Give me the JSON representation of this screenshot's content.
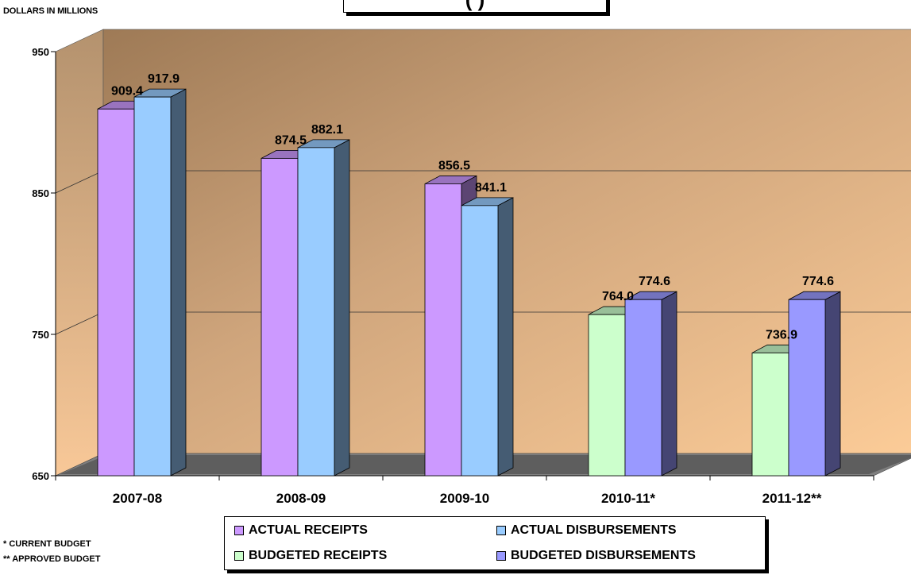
{
  "header": {
    "title_fragment": "(  )",
    "units": "DOLLARS IN MILLIONS"
  },
  "footnotes": [
    "* CURRENT BUDGET",
    "** APPROVED BUDGET"
  ],
  "colors": {
    "actual_receipts": "#cc99ff",
    "actual_disbursements": "#99ccff",
    "budgeted_receipts": "#ccffcc",
    "budgeted_disbursements": "#9999ff"
  },
  "chart_data": {
    "type": "bar",
    "categories": [
      "2007-08",
      "2008-09",
      "2009-10",
      "2010-11*",
      "2011-12**"
    ],
    "ylim": [
      650,
      950
    ],
    "yticks": [
      650,
      750,
      850,
      950
    ],
    "ylabel": "DOLLARS IN MILLIONS",
    "grid": true,
    "legend": "bottom",
    "series": [
      {
        "name": "ACTUAL RECEIPTS",
        "values": [
          909.4,
          874.5,
          856.5,
          null,
          null
        ]
      },
      {
        "name": "ACTUAL DISBURSEMENTS",
        "values": [
          917.9,
          882.1,
          841.1,
          null,
          null
        ]
      },
      {
        "name": "BUDGETED RECEIPTS",
        "values": [
          null,
          null,
          null,
          764.0,
          736.9
        ]
      },
      {
        "name": "BUDGETED DISBURSEMENTS",
        "values": [
          null,
          null,
          null,
          774.6,
          774.6
        ]
      }
    ],
    "data_labels": [
      [
        "909.4",
        "917.9"
      ],
      [
        "874.5",
        "882.1"
      ],
      [
        "856.5",
        "841.1"
      ],
      [
        "764.0",
        "774.6"
      ],
      [
        "736.9",
        "774.6"
      ]
    ]
  }
}
